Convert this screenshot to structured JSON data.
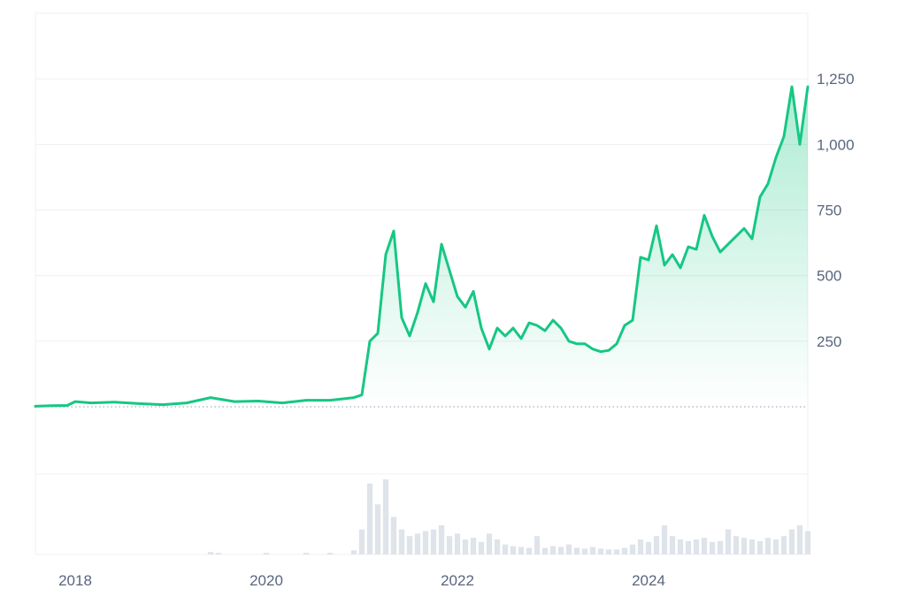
{
  "chart_data": {
    "type": "area",
    "title": "",
    "xlabel": "",
    "ylabel": "",
    "x_ticks": [
      "2018",
      "2020",
      "2022",
      "2024"
    ],
    "y_ticks": [
      {
        "value": 250,
        "label": "250"
      },
      {
        "value": 500,
        "label": "500"
      },
      {
        "value": 750,
        "label": "750"
      },
      {
        "value": 1000,
        "label": "1,000"
      },
      {
        "value": 1250,
        "label": "1,250"
      }
    ],
    "xlim": [
      "2017-08",
      "2025-09"
    ],
    "ylim": [
      0,
      1500
    ],
    "grid": true,
    "legend": "none",
    "colors": {
      "line": "#16c784",
      "area_top": "#16c784",
      "grid": "#eef0f3",
      "baseline": "#a6b0c3",
      "volume": "#dfe3ea",
      "axis_text": "#58667e"
    },
    "series": [
      {
        "x": [
          "2017-08",
          "2017-10",
          "2017-12",
          "2018-01",
          "2018-03",
          "2018-06",
          "2018-09",
          "2018-12",
          "2019-03",
          "2019-06",
          "2019-07",
          "2019-09",
          "2019-12",
          "2020-03",
          "2020-06",
          "2020-09",
          "2020-12",
          "2021-01",
          "2021-02",
          "2021-03",
          "2021-04",
          "2021-05",
          "2021-06",
          "2021-07",
          "2021-08",
          "2021-09",
          "2021-10",
          "2021-11",
          "2021-12",
          "2022-01",
          "2022-02",
          "2022-03",
          "2022-04",
          "2022-05",
          "2022-06",
          "2022-07",
          "2022-08",
          "2022-09",
          "2022-10",
          "2022-11",
          "2022-12",
          "2023-01",
          "2023-02",
          "2023-03",
          "2023-04",
          "2023-05",
          "2023-06",
          "2023-07",
          "2023-08",
          "2023-09",
          "2023-10",
          "2023-11",
          "2023-12",
          "2024-01",
          "2024-02",
          "2024-03",
          "2024-04",
          "2024-05",
          "2024-06",
          "2024-07",
          "2024-08",
          "2024-09",
          "2024-10",
          "2024-11",
          "2024-12",
          "2025-01",
          "2025-02",
          "2025-03",
          "2025-04",
          "2025-05",
          "2025-06",
          "2025-07",
          "2025-08",
          "2025-09"
        ],
        "y": [
          2,
          4,
          5,
          20,
          15,
          18,
          12,
          8,
          15,
          35,
          30,
          20,
          22,
          15,
          25,
          25,
          35,
          45,
          250,
          280,
          580,
          670,
          340,
          270,
          360,
          470,
          400,
          620,
          520,
          420,
          380,
          440,
          300,
          220,
          300,
          270,
          300,
          260,
          320,
          310,
          290,
          330,
          300,
          250,
          240,
          240,
          220,
          210,
          215,
          240,
          310,
          330,
          570,
          560,
          690,
          540,
          580,
          530,
          610,
          600,
          730,
          650,
          590,
          620,
          650,
          680,
          640,
          800,
          850,
          950,
          1030,
          1220,
          1000,
          1220
        ]
      }
    ],
    "volume": [
      {
        "x": "2019-06",
        "v": 3
      },
      {
        "x": "2019-07",
        "v": 2
      },
      {
        "x": "2020-01",
        "v": 2
      },
      {
        "x": "2020-06",
        "v": 2
      },
      {
        "x": "2020-09",
        "v": 2
      },
      {
        "x": "2020-12",
        "v": 5
      },
      {
        "x": "2021-01",
        "v": 30
      },
      {
        "x": "2021-02",
        "v": 85
      },
      {
        "x": "2021-03",
        "v": 60
      },
      {
        "x": "2021-04",
        "v": 90
      },
      {
        "x": "2021-05",
        "v": 45
      },
      {
        "x": "2021-06",
        "v": 30
      },
      {
        "x": "2021-07",
        "v": 22
      },
      {
        "x": "2021-08",
        "v": 25
      },
      {
        "x": "2021-09",
        "v": 28
      },
      {
        "x": "2021-10",
        "v": 30
      },
      {
        "x": "2021-11",
        "v": 35
      },
      {
        "x": "2021-12",
        "v": 22
      },
      {
        "x": "2022-01",
        "v": 25
      },
      {
        "x": "2022-02",
        "v": 18
      },
      {
        "x": "2022-03",
        "v": 20
      },
      {
        "x": "2022-04",
        "v": 15
      },
      {
        "x": "2022-05",
        "v": 25
      },
      {
        "x": "2022-06",
        "v": 18
      },
      {
        "x": "2022-07",
        "v": 12
      },
      {
        "x": "2022-08",
        "v": 10
      },
      {
        "x": "2022-09",
        "v": 9
      },
      {
        "x": "2022-10",
        "v": 8
      },
      {
        "x": "2022-11",
        "v": 22
      },
      {
        "x": "2022-12",
        "v": 8
      },
      {
        "x": "2023-01",
        "v": 10
      },
      {
        "x": "2023-02",
        "v": 9
      },
      {
        "x": "2023-03",
        "v": 12
      },
      {
        "x": "2023-04",
        "v": 8
      },
      {
        "x": "2023-05",
        "v": 7
      },
      {
        "x": "2023-06",
        "v": 9
      },
      {
        "x": "2023-07",
        "v": 7
      },
      {
        "x": "2023-08",
        "v": 6
      },
      {
        "x": "2023-09",
        "v": 6
      },
      {
        "x": "2023-10",
        "v": 8
      },
      {
        "x": "2023-11",
        "v": 12
      },
      {
        "x": "2023-12",
        "v": 18
      },
      {
        "x": "2024-01",
        "v": 15
      },
      {
        "x": "2024-02",
        "v": 22
      },
      {
        "x": "2024-03",
        "v": 35
      },
      {
        "x": "2024-04",
        "v": 22
      },
      {
        "x": "2024-05",
        "v": 18
      },
      {
        "x": "2024-06",
        "v": 16
      },
      {
        "x": "2024-07",
        "v": 18
      },
      {
        "x": "2024-08",
        "v": 20
      },
      {
        "x": "2024-09",
        "v": 15
      },
      {
        "x": "2024-10",
        "v": 16
      },
      {
        "x": "2024-11",
        "v": 30
      },
      {
        "x": "2024-12",
        "v": 22
      },
      {
        "x": "2025-01",
        "v": 20
      },
      {
        "x": "2025-02",
        "v": 18
      },
      {
        "x": "2025-03",
        "v": 16
      },
      {
        "x": "2025-04",
        "v": 20
      },
      {
        "x": "2025-05",
        "v": 18
      },
      {
        "x": "2025-06",
        "v": 22
      },
      {
        "x": "2025-07",
        "v": 30
      },
      {
        "x": "2025-08",
        "v": 35
      },
      {
        "x": "2025-09",
        "v": 28
      }
    ]
  }
}
